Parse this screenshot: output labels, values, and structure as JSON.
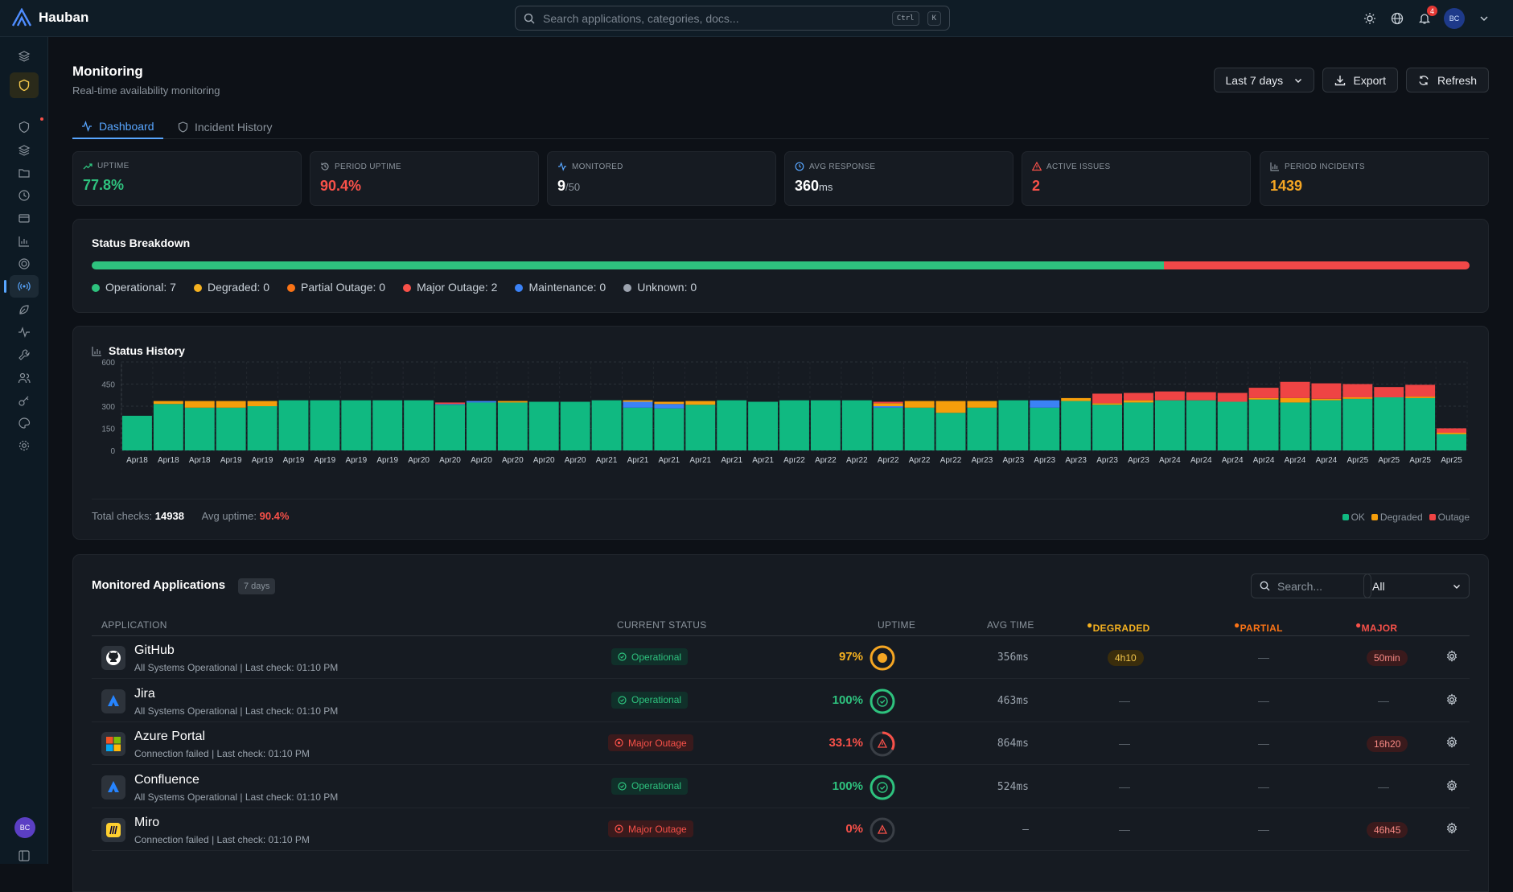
{
  "app": {
    "name": "Hauban"
  },
  "search": {
    "placeholder": "Search applications, categories, docs...",
    "k1": "Ctrl",
    "k2": "K"
  },
  "header": {
    "notif_count": "4",
    "avatar": "BC"
  },
  "page": {
    "title": "Monitoring",
    "subtitle": "Real-time availability monitoring"
  },
  "controls": {
    "range": "Last 7 days",
    "export": "Export",
    "refresh": "Refresh"
  },
  "tabs": [
    {
      "label": "Dashboard"
    },
    {
      "label": "Incident History"
    }
  ],
  "stats": [
    {
      "label": "UPTIME",
      "value": "77.8%",
      "color": "#2ec27e",
      "icon": "trend-up-icon"
    },
    {
      "label": "PERIOD UPTIME",
      "value": "90.4%",
      "color": "#f85149",
      "icon": "history-icon"
    },
    {
      "label": "MONITORED",
      "value": "9",
      "suffix": "/50",
      "color": "#ffffff",
      "icon": "activity-icon"
    },
    {
      "label": "AVG RESPONSE",
      "value": "360",
      "suffix": "ms",
      "color": "#ffffff",
      "icon": "clock-icon"
    },
    {
      "label": "ACTIVE ISSUES",
      "value": "2",
      "color": "#f85149",
      "icon": "alert-triangle-icon"
    },
    {
      "label": "PERIOD INCIDENTS",
      "value": "1439",
      "color": "#f5a623",
      "icon": "bar-chart-icon"
    }
  ],
  "breakdown": {
    "title": "Status Breakdown",
    "operational_fraction": 0.778,
    "items": [
      {
        "label": "Operational: 7",
        "color": "#2ec27e"
      },
      {
        "label": "Degraded: 0",
        "color": "#f5b120"
      },
      {
        "label": "Partial Outage: 0",
        "color": "#f97316"
      },
      {
        "label": "Major Outage: 2",
        "color": "#f85149"
      },
      {
        "label": "Maintenance: 0",
        "color": "#3b82f6"
      },
      {
        "label": "Unknown: 0",
        "color": "#9ca3af"
      }
    ]
  },
  "history": {
    "title": "Status History",
    "total_checks_label": "Total checks:",
    "total_checks": "14938",
    "avg_uptime_label": "Avg uptime:",
    "avg_uptime": "90.4%",
    "legend": [
      {
        "label": "OK",
        "color": "#10b981"
      },
      {
        "label": "Degraded",
        "color": "#f59e0b"
      },
      {
        "label": "Outage",
        "color": "#ef4444"
      }
    ]
  },
  "chart_data": {
    "type": "bar",
    "stacked": true,
    "ylim": [
      0,
      600
    ],
    "yticks": [
      "600",
      "450",
      "300",
      "150",
      "0"
    ],
    "categories": [
      "Apr18",
      "Apr18",
      "Apr18",
      "Apr19",
      "Apr19",
      "Apr19",
      "Apr19",
      "Apr19",
      "Apr19",
      "Apr20",
      "Apr20",
      "Apr20",
      "Apr20",
      "Apr20",
      "Apr20",
      "Apr21",
      "Apr21",
      "Apr21",
      "Apr21",
      "Apr21",
      "Apr21",
      "Apr22",
      "Apr22",
      "Apr22",
      "Apr22",
      "Apr22",
      "Apr22",
      "Apr23",
      "Apr23",
      "Apr23",
      "Apr23",
      "Apr23",
      "Apr23",
      "Apr24",
      "Apr24",
      "Apr24",
      "Apr24",
      "Apr24",
      "Apr24",
      "Apr25",
      "Apr25",
      "Apr25",
      "Apr25"
    ],
    "series": [
      {
        "name": "OK",
        "color": "#10b981",
        "values": [
          235,
          315,
          290,
          290,
          300,
          340,
          340,
          340,
          340,
          340,
          310,
          325,
          325,
          330,
          330,
          340,
          290,
          285,
          310,
          340,
          330,
          340,
          340,
          340,
          290,
          290,
          255,
          290,
          340,
          290,
          335,
          310,
          325,
          340,
          340,
          330,
          345,
          325,
          340,
          350,
          360,
          355,
          110
        ]
      },
      {
        "name": "Degraded",
        "color": "#f59e0b",
        "values": [
          0,
          20,
          45,
          45,
          35,
          0,
          0,
          0,
          0,
          0,
          0,
          0,
          10,
          0,
          0,
          0,
          10,
          15,
          25,
          0,
          0,
          0,
          0,
          0,
          20,
          45,
          80,
          45,
          0,
          0,
          20,
          10,
          15,
          0,
          0,
          0,
          10,
          30,
          10,
          10,
          0,
          10,
          10
        ]
      },
      {
        "name": "Outage",
        "color": "#ef4444",
        "values": [
          0,
          0,
          0,
          0,
          0,
          0,
          0,
          0,
          0,
          0,
          10,
          0,
          0,
          0,
          0,
          0,
          0,
          0,
          0,
          0,
          0,
          0,
          0,
          0,
          10,
          0,
          0,
          0,
          0,
          0,
          0,
          65,
          50,
          60,
          55,
          60,
          70,
          110,
          105,
          90,
          70,
          80,
          30
        ]
      },
      {
        "name": "Maintenance",
        "color": "#3b82f6",
        "values": [
          0,
          0,
          0,
          0,
          0,
          0,
          0,
          0,
          0,
          0,
          5,
          10,
          0,
          0,
          0,
          0,
          40,
          30,
          0,
          0,
          0,
          0,
          0,
          0,
          10,
          0,
          0,
          0,
          0,
          50,
          0,
          0,
          0,
          0,
          0,
          0,
          0,
          0,
          0,
          0,
          0,
          0,
          0
        ]
      }
    ]
  },
  "apps": {
    "title": "Monitored Applications",
    "period": "7 days",
    "search_placeholder": "Search...",
    "filter": "All",
    "columns": {
      "application": "APPLICATION",
      "status": "CURRENT STATUS",
      "uptime": "UPTIME",
      "avg": "AVG TIME",
      "degraded": "DEGRADED",
      "partial": "PARTIAL",
      "major": "MAJOR"
    },
    "rows": [
      {
        "name": "GitHub",
        "sub": "All Systems Operational | Last check: 01:10 PM",
        "status": "Operational",
        "ok": true,
        "uptime": "97%",
        "uptime_value": 97,
        "avg": "356ms",
        "degraded": "4h10",
        "partial": "—",
        "major": "50min",
        "icon": "github-icon"
      },
      {
        "name": "Jira",
        "sub": "All Systems Operational | Last check: 01:10 PM",
        "status": "Operational",
        "ok": true,
        "uptime": "100%",
        "uptime_value": 100,
        "avg": "463ms",
        "degraded": "—",
        "partial": "—",
        "major": "—",
        "icon": "jira-icon"
      },
      {
        "name": "Azure Portal",
        "sub": "Connection failed | Last check: 01:10 PM",
        "status": "Major Outage",
        "ok": false,
        "uptime": "33.1%",
        "uptime_value": 33.1,
        "avg": "864ms",
        "degraded": "—",
        "partial": "—",
        "major": "16h20",
        "icon": "azure-icon"
      },
      {
        "name": "Confluence",
        "sub": "All Systems Operational | Last check: 01:10 PM",
        "status": "Operational",
        "ok": true,
        "uptime": "100%",
        "uptime_value": 100,
        "avg": "524ms",
        "degraded": "—",
        "partial": "—",
        "major": "—",
        "icon": "confluence-icon"
      },
      {
        "name": "Miro",
        "sub": "Connection failed | Last check: 01:10 PM",
        "status": "Major Outage",
        "ok": false,
        "uptime": "0%",
        "uptime_value": 0,
        "avg": "—",
        "degraded": "—",
        "partial": "—",
        "major": "46h45",
        "icon": "miro-icon"
      }
    ]
  },
  "sidebar": {
    "avatar": "BC"
  }
}
